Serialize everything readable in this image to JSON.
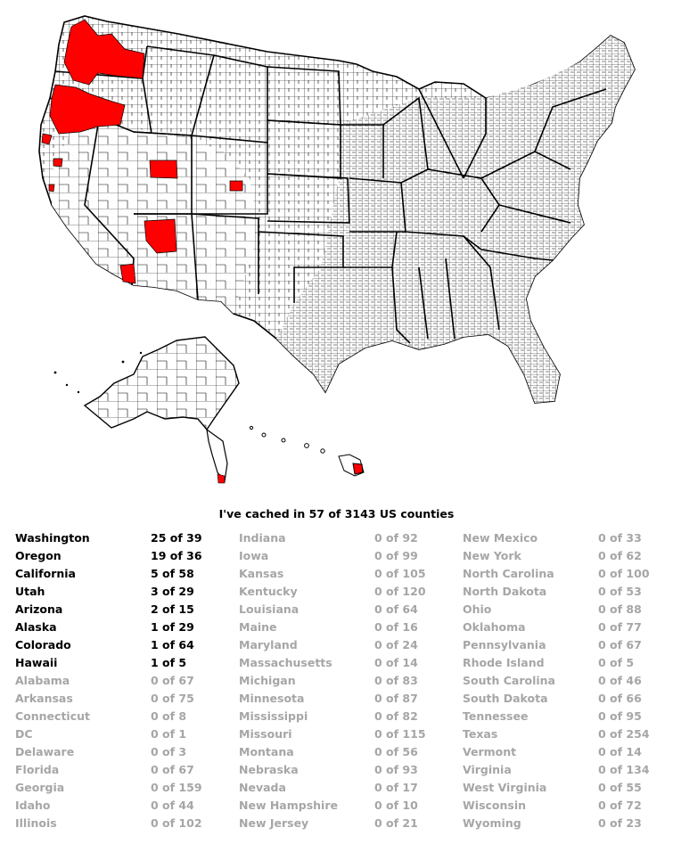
{
  "summary": "I've cached in 57 of 3143 US counties",
  "colors": {
    "cached": "#ff0000",
    "land": "#ffffff",
    "border": "#000000",
    "muted": "#a6a6a6"
  },
  "states": [
    {
      "name": "Washington",
      "count": "25 of 39",
      "cached": true
    },
    {
      "name": "Oregon",
      "count": "19 of 36",
      "cached": true
    },
    {
      "name": "California",
      "count": "5 of 58",
      "cached": true
    },
    {
      "name": "Utah",
      "count": "3 of 29",
      "cached": true
    },
    {
      "name": "Arizona",
      "count": "2 of 15",
      "cached": true
    },
    {
      "name": "Alaska",
      "count": "1 of 29",
      "cached": true
    },
    {
      "name": "Colorado",
      "count": "1 of 64",
      "cached": true
    },
    {
      "name": "Hawaii",
      "count": "1 of 5",
      "cached": true
    },
    {
      "name": "Alabama",
      "count": "0 of 67",
      "cached": false
    },
    {
      "name": "Arkansas",
      "count": "0 of 75",
      "cached": false
    },
    {
      "name": "Connecticut",
      "count": "0 of 8",
      "cached": false
    },
    {
      "name": "DC",
      "count": "0 of 1",
      "cached": false
    },
    {
      "name": "Delaware",
      "count": "0 of 3",
      "cached": false
    },
    {
      "name": "Florida",
      "count": "0 of 67",
      "cached": false
    },
    {
      "name": "Georgia",
      "count": "0 of 159",
      "cached": false
    },
    {
      "name": "Idaho",
      "count": "0 of 44",
      "cached": false
    },
    {
      "name": "Illinois",
      "count": "0 of 102",
      "cached": false
    },
    {
      "name": "Indiana",
      "count": "0 of 92",
      "cached": false
    },
    {
      "name": "Iowa",
      "count": "0 of 99",
      "cached": false
    },
    {
      "name": "Kansas",
      "count": "0 of 105",
      "cached": false
    },
    {
      "name": "Kentucky",
      "count": "0 of 120",
      "cached": false
    },
    {
      "name": "Louisiana",
      "count": "0 of 64",
      "cached": false
    },
    {
      "name": "Maine",
      "count": "0 of 16",
      "cached": false
    },
    {
      "name": "Maryland",
      "count": "0 of 24",
      "cached": false
    },
    {
      "name": "Massachusetts",
      "count": "0 of 14",
      "cached": false
    },
    {
      "name": "Michigan",
      "count": "0 of 83",
      "cached": false
    },
    {
      "name": "Minnesota",
      "count": "0 of 87",
      "cached": false
    },
    {
      "name": "Mississippi",
      "count": "0 of 82",
      "cached": false
    },
    {
      "name": "Missouri",
      "count": "0 of 115",
      "cached": false
    },
    {
      "name": "Montana",
      "count": "0 of 56",
      "cached": false
    },
    {
      "name": "Nebraska",
      "count": "0 of 93",
      "cached": false
    },
    {
      "name": "Nevada",
      "count": "0 of 17",
      "cached": false
    },
    {
      "name": "New Hampshire",
      "count": "0 of 10",
      "cached": false
    },
    {
      "name": "New Jersey",
      "count": "0 of 21",
      "cached": false
    },
    {
      "name": "New Mexico",
      "count": "0 of 33",
      "cached": false
    },
    {
      "name": "New York",
      "count": "0 of 62",
      "cached": false
    },
    {
      "name": "North Carolina",
      "count": "0 of 100",
      "cached": false
    },
    {
      "name": "North Dakota",
      "count": "0 of 53",
      "cached": false
    },
    {
      "name": "Ohio",
      "count": "0 of 88",
      "cached": false
    },
    {
      "name": "Oklahoma",
      "count": "0 of 77",
      "cached": false
    },
    {
      "name": "Pennsylvania",
      "count": "0 of 67",
      "cached": false
    },
    {
      "name": "Rhode Island",
      "count": "0 of 5",
      "cached": false
    },
    {
      "name": "South Carolina",
      "count": "0 of 46",
      "cached": false
    },
    {
      "name": "South Dakota",
      "count": "0 of 66",
      "cached": false
    },
    {
      "name": "Tennessee",
      "count": "0 of 95",
      "cached": false
    },
    {
      "name": "Texas",
      "count": "0 of 254",
      "cached": false
    },
    {
      "name": "Vermont",
      "count": "0 of 14",
      "cached": false
    },
    {
      "name": "Virginia",
      "count": "0 of 134",
      "cached": false
    },
    {
      "name": "West Virginia",
      "count": "0 of 55",
      "cached": false
    },
    {
      "name": "Wisconsin",
      "count": "0 of 72",
      "cached": false
    },
    {
      "name": "Wyoming",
      "count": "0 of 23",
      "cached": false
    }
  ]
}
